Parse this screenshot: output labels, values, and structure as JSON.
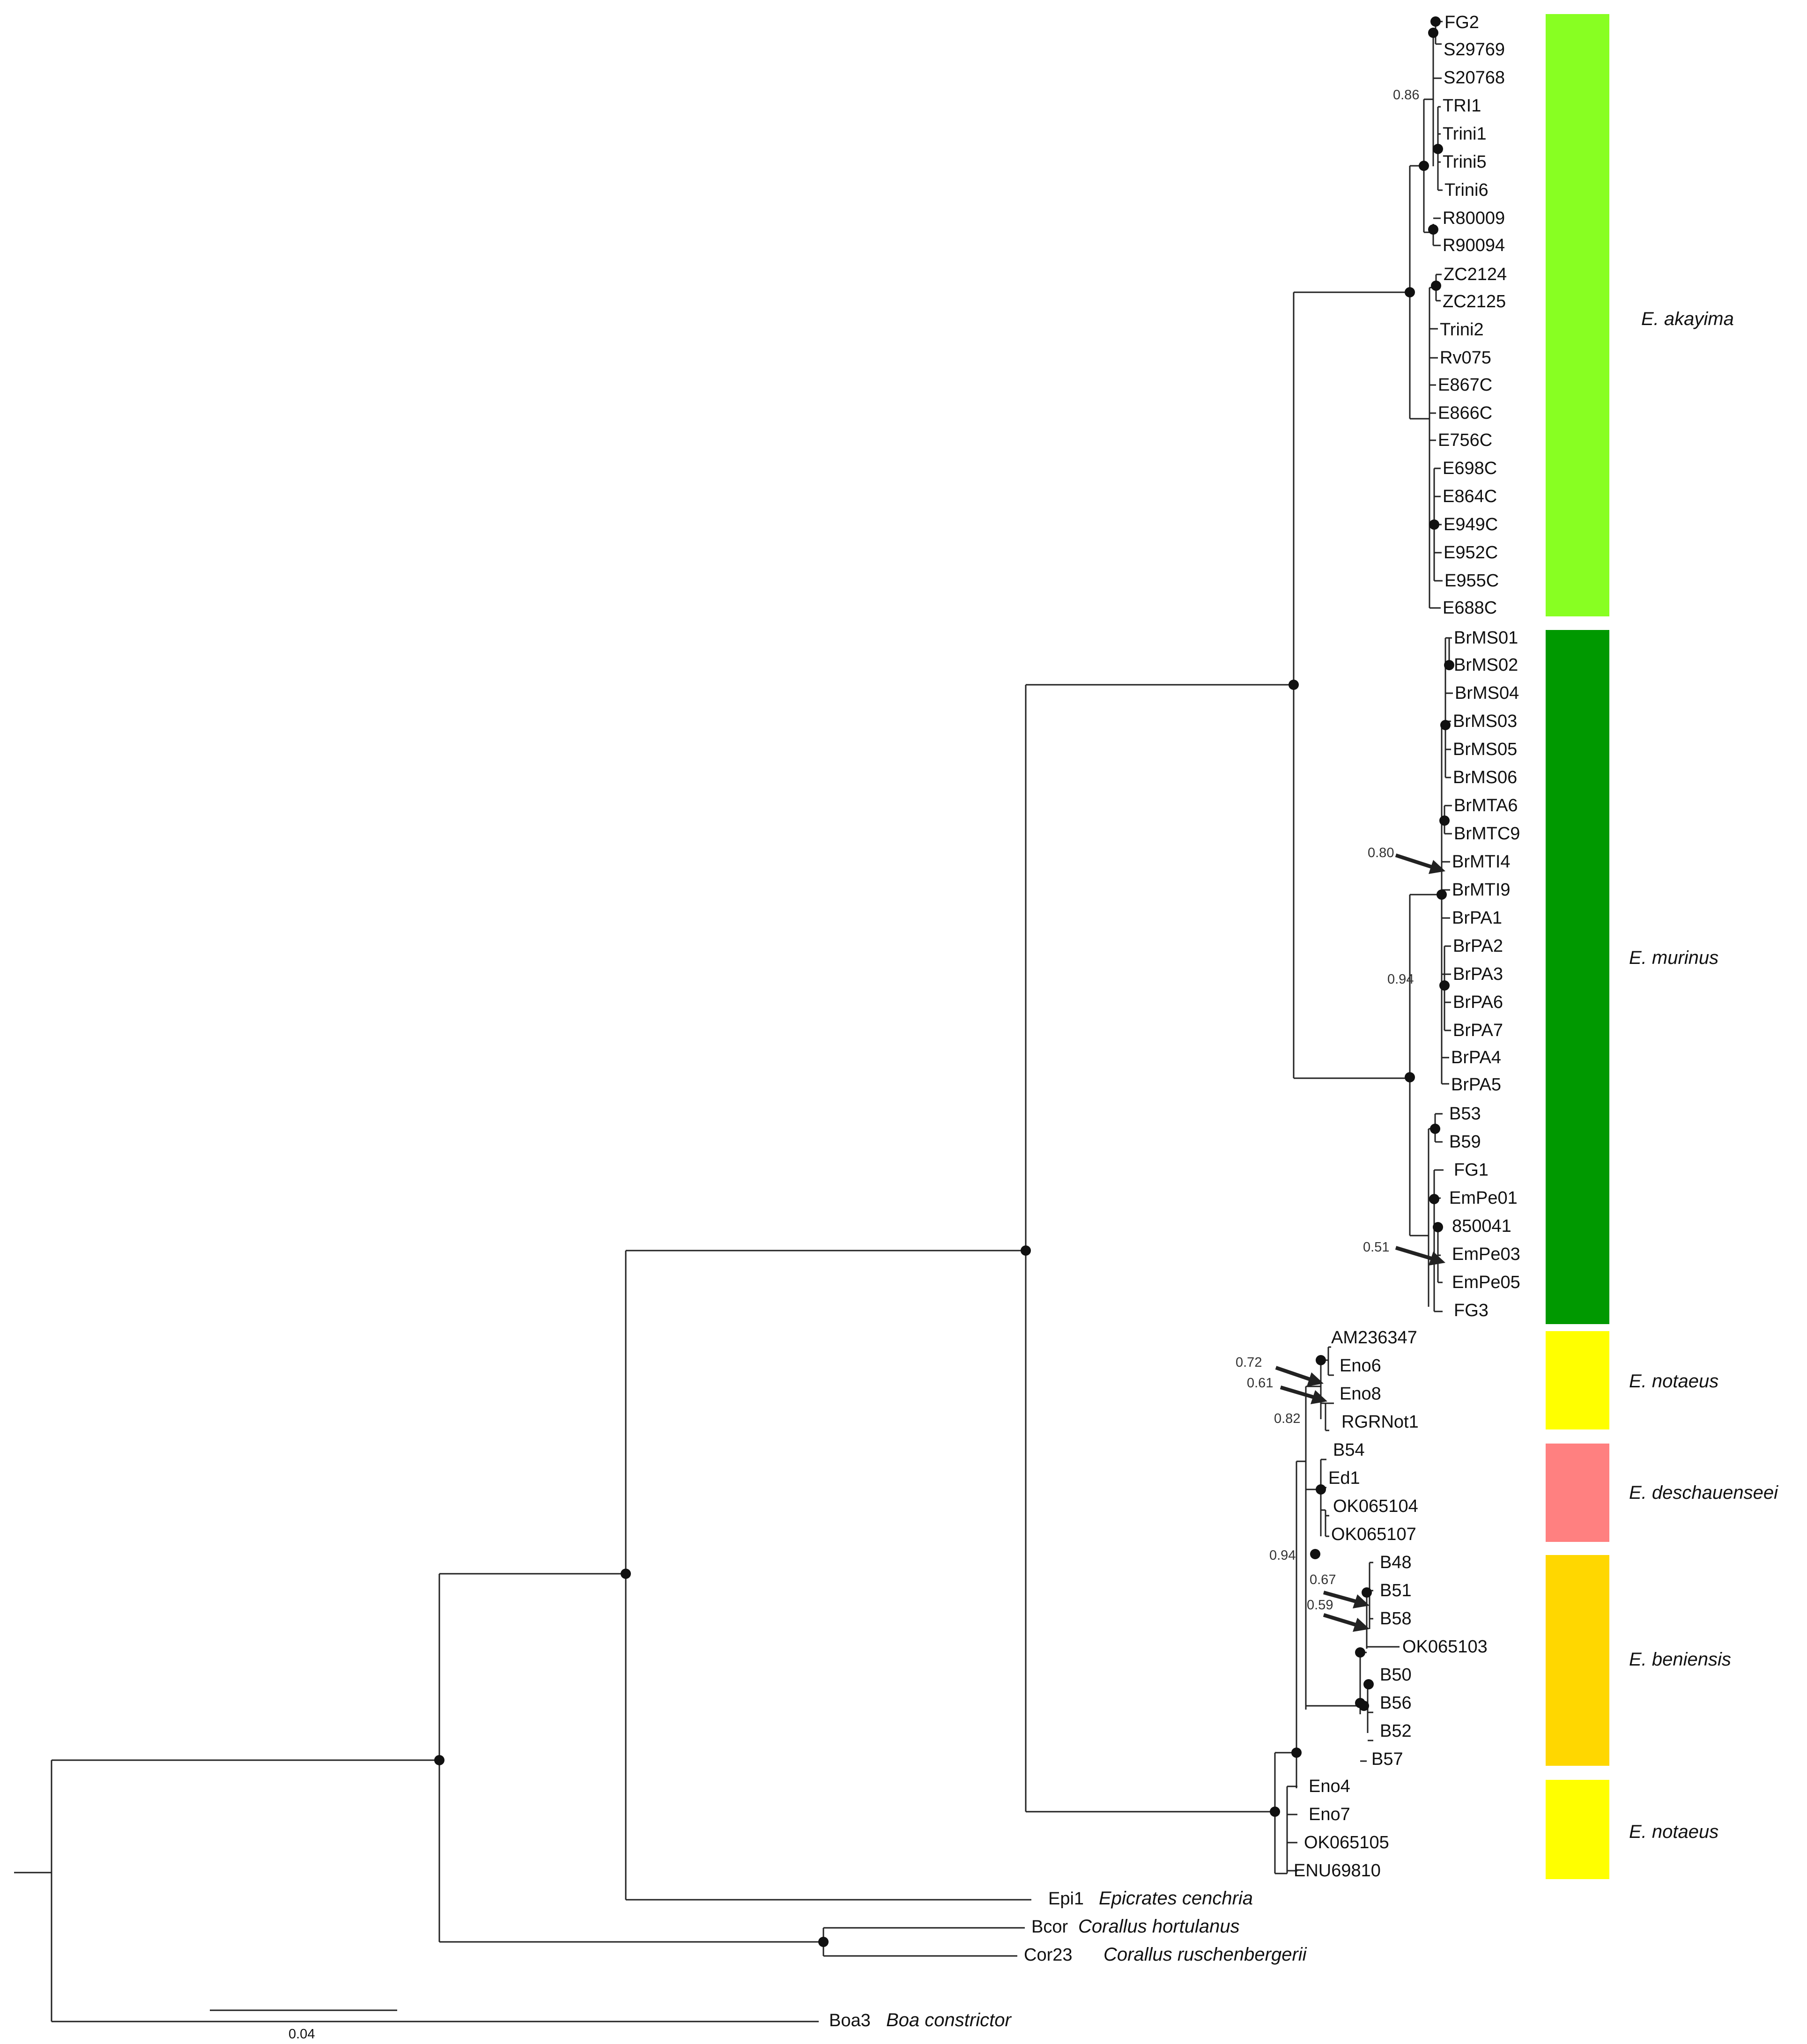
{
  "figure": {
    "title": "",
    "scale_bar_label": "0.04"
  },
  "taxa": {
    "t0": "FG2",
    "t1": "S29769",
    "t2": "S20768",
    "t3": "TRI1",
    "t4": "Trini1",
    "t5": "Trini5",
    "t6": "Trini6",
    "t7": "R80009",
    "t8": "R90094",
    "t9": "ZC2124",
    "t10": "ZC2125",
    "t11": "Trini2",
    "t12": "Rv075",
    "t13": "E867C",
    "t14": "E866C",
    "t15": "E756C",
    "t16": "E698C",
    "t17": "E864C",
    "t18": "E949C",
    "t19": "E952C",
    "t20": "E955C",
    "t21": "E688C",
    "t22": "BrMS01",
    "t23": "BrMS02",
    "t24": "BrMS04",
    "t25": "BrMS03",
    "t26": "BrMS05",
    "t27": "BrMS06",
    "t28": "BrMTA6",
    "t29": "BrMTC9",
    "t30": "BrMTI4",
    "t31": "BrMTI9",
    "t32": "BrPA1",
    "t33": "BrPA2",
    "t34": "BrPA3",
    "t35": "BrPA6",
    "t36": "BrPA7",
    "t37": "BrPA4",
    "t38": "BrPA5",
    "t39": "B53",
    "t40": "B59",
    "t41": "FG1",
    "t42": "EmPe01",
    "t43": "850041",
    "t44": "EmPe03",
    "t45": "EmPe05",
    "t46": "FG3",
    "t47": "AM236347",
    "t48": "Eno6",
    "t49": "Eno8",
    "t50": "RGRNot1",
    "t51": "B54",
    "t52": "Ed1",
    "t53": "OK065104",
    "t54": "OK065107",
    "t55": "B48",
    "t56": "B51",
    "t57": "B58",
    "t58": "OK065103",
    "t59": "B50",
    "t60": "B56",
    "t61": "B52",
    "t62": "B57",
    "t63": "Eno4",
    "t64": "Eno7",
    "t65": "OK065105",
    "t66": "ENU69810",
    "t67": "Epi1",
    "t68": "Bcor",
    "t69": "Cor23",
    "t70": "Boa3"
  },
  "outgroup_species": {
    "epicrates": "Epicrates cenchria",
    "corallus_h": "Corallus hortulanus",
    "corallus_r": "Corallus ruschenbergerii",
    "boa": "Boa constrictor"
  },
  "support_values": {
    "s086": "0.86",
    "s080": "0.80",
    "s094a": "0.94",
    "s051": "0.51",
    "s072": "0.72",
    "s061": "0.61",
    "s082": "0.82",
    "s094b": "0.94",
    "s067": "0.67",
    "s059": "0.59"
  },
  "clades": [
    {
      "label": "E. akayima",
      "color": "#88ff22"
    },
    {
      "label": "E. murinus",
      "color": "#009900"
    },
    {
      "label": "E. notaeus",
      "color": "#ffff00"
    },
    {
      "label": "E. deschauenseei",
      "color": "#ff8080"
    },
    {
      "label": "E. beniensis",
      "color": "#ffd700"
    },
    {
      "label": "E. notaeus",
      "color": "#ffff00"
    }
  ]
}
